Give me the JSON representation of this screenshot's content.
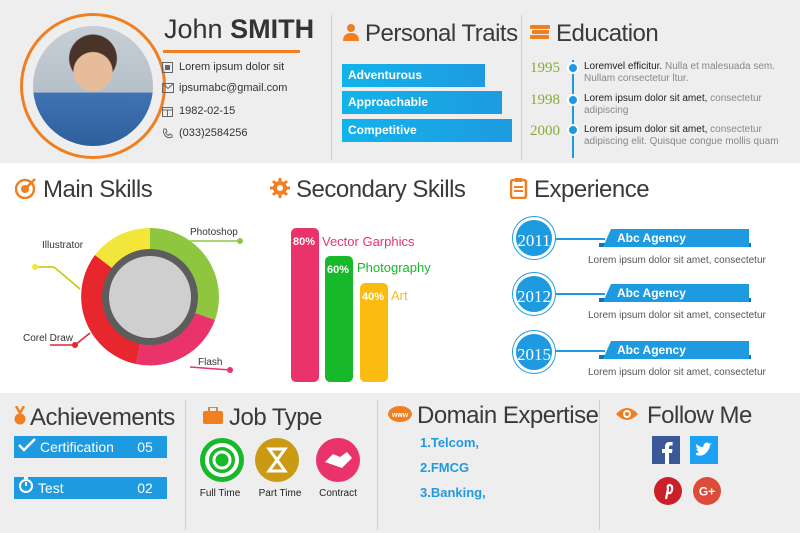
{
  "profile": {
    "first_name": "John",
    "last_name": "SMITH",
    "address": "Lorem ipsum dolor sit",
    "email": "ipsumabc@gmail.com",
    "birthdate": "1982-02-15",
    "phone": "(033)2584256"
  },
  "traits": {
    "title": "Personal Traits",
    "items": [
      "Adventurous",
      "Approachable",
      "Competitive"
    ]
  },
  "education": {
    "title": "Education",
    "items": [
      {
        "year": "1995",
        "bold": "Loremvel efficitur.",
        "rest": " Nulla et malesuada sem. Nullam consectetur ltur."
      },
      {
        "year": "1998",
        "bold": "Lorem ipsum dolor sit amet,",
        "rest": " consectetur adipiscing"
      },
      {
        "year": "2000",
        "bold": "Lorem ipsum dolor sit amet,",
        "rest": " consectetur adipiscing elit. Quisque congue mollis quam"
      }
    ]
  },
  "main_skills": {
    "title": "Main Skills",
    "labels": [
      "Illustrator",
      "Photoshop",
      "Corel Draw",
      "Flash"
    ],
    "colors": {
      "illustrator": "#f2e63b",
      "photoshop": "#8ec63f",
      "corel_draw": "#e8262d",
      "flash": "#e9336a"
    }
  },
  "secondary_skills": {
    "title": "Secondary Skills",
    "items": [
      {
        "label": "Vector Garphics",
        "pct": "80%",
        "value": 80,
        "color": "#e9336a"
      },
      {
        "label": "Photography",
        "pct": "60%",
        "value": 60,
        "color": "#17b82a"
      },
      {
        "label": "Art",
        "pct": "40%",
        "value": 40,
        "color": "#fbbc11"
      }
    ]
  },
  "experience": {
    "title": "Experience",
    "items": [
      {
        "year": "2011",
        "company": "Abc Agency",
        "desc": "Lorem ipsum dolor sit amet, consectetur"
      },
      {
        "year": "2012",
        "company": "Abc Agency",
        "desc": "Lorem ipsum dolor sit amet, consectetur"
      },
      {
        "year": "2015",
        "company": "Abc Agency",
        "desc": "Lorem ipsum dolor sit amet, consectetur"
      }
    ]
  },
  "achievements": {
    "title": "Achievements",
    "items": [
      {
        "label": "Certification",
        "value": "05"
      },
      {
        "label": "Test",
        "value": "02"
      }
    ]
  },
  "job_type": {
    "title": "Job Type",
    "items": [
      "Full Time",
      "Part Time",
      "Contract"
    ]
  },
  "domain": {
    "title": "Domain Expertise",
    "items": [
      "1.Telcom,",
      "2.FMCG",
      "3.Banking,"
    ]
  },
  "follow": {
    "title": "Follow Me",
    "icons": [
      "facebook-icon",
      "twitter-icon",
      "pinterest-icon",
      "google-plus-icon"
    ]
  },
  "colors": {
    "accent_orange": "#f07f22",
    "accent_blue": "#1e9be0",
    "year_green": "#8aa93a"
  }
}
